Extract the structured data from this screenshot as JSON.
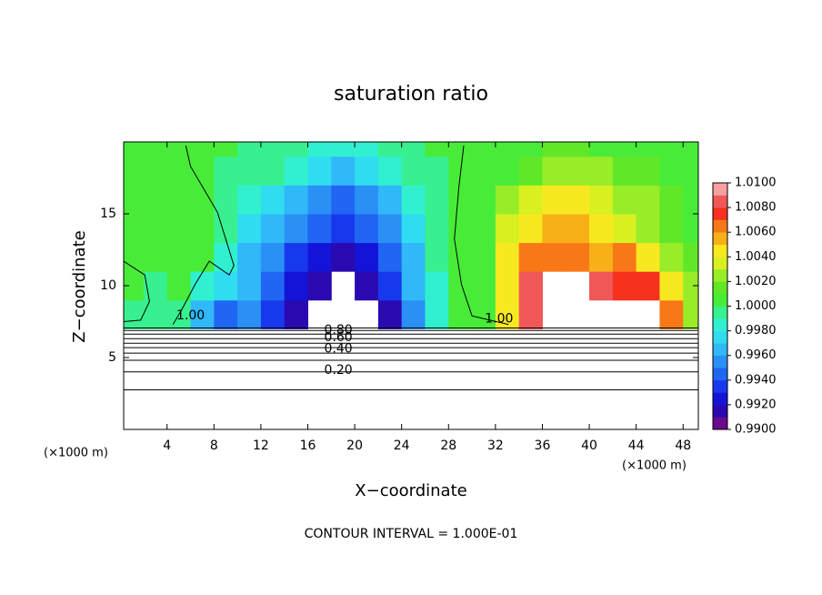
{
  "chart_data": {
    "type": "contour",
    "title": "saturation ratio",
    "x_label": "X−coordinate",
    "y_label": "Z−coordinate",
    "x_unit_left": "(×1000 m)",
    "x_unit_right": "(×1000 m)",
    "footer": "CONTOUR INTERVAL = 1.000E-01",
    "xlim": [
      0.3,
      49.3
    ],
    "ylim": [
      0,
      20
    ],
    "xticks": [
      4,
      8,
      12,
      16,
      20,
      24,
      28,
      32,
      36,
      40,
      44,
      48
    ],
    "yticks": [
      5,
      10,
      15
    ],
    "x": [
      1,
      3,
      5,
      7,
      9,
      11,
      13,
      15,
      17,
      19,
      21,
      23,
      25,
      27,
      29,
      31,
      33,
      35,
      37,
      39,
      41,
      43,
      45,
      47,
      49
    ],
    "y": [
      8,
      10,
      12,
      14,
      16,
      18,
      20
    ],
    "z": [
      [
        0.9998,
        0.9995,
        0.999,
        0.996,
        0.994,
        0.995,
        0.9935,
        0.9915,
        null,
        null,
        null,
        0.9915,
        0.995,
        0.9985,
        1.0,
        1.0004,
        1.005,
        1.009,
        null,
        null,
        null,
        null,
        null,
        1.007,
        1.003
      ],
      [
        1.0,
        0.9999,
        1.0,
        0.9985,
        0.997,
        0.996,
        0.9945,
        0.9925,
        0.991,
        null,
        0.9912,
        0.993,
        0.996,
        0.9988,
        1.0,
        1.0002,
        1.0045,
        1.0085,
        null,
        null,
        1.008,
        1.0075,
        1.0075,
        1.005,
        1.002
      ],
      [
        1.0001,
        1.0002,
        1.0001,
        1.0,
        0.9985,
        0.9965,
        0.995,
        0.9935,
        0.9925,
        0.9915,
        0.9925,
        0.9945,
        0.9968,
        0.999,
        1.0,
        1.0008,
        1.004,
        1.0065,
        1.0068,
        1.006,
        1.0055,
        1.006,
        1.005,
        1.003,
        1.0012
      ],
      [
        1.0002,
        1.0002,
        1.0001,
        1.0,
        0.999,
        0.9972,
        0.996,
        0.995,
        0.9942,
        0.9935,
        0.9942,
        0.9955,
        0.9975,
        0.9992,
        1.0,
        1.001,
        1.0035,
        1.005,
        1.0055,
        1.0052,
        1.0045,
        1.0038,
        1.0025,
        1.0015,
        1.0008
      ],
      [
        1.0003,
        1.0003,
        1.0002,
        1.0,
        0.9994,
        0.9985,
        0.9972,
        0.9962,
        0.9955,
        0.9948,
        0.9955,
        0.9968,
        0.9982,
        0.9995,
        1.0,
        1.0008,
        1.0022,
        1.0035,
        1.004,
        1.004,
        1.0035,
        1.0028,
        1.002,
        1.0012,
        1.0008
      ],
      [
        1.0002,
        1.0002,
        1.0001,
        1.0,
        0.9998,
        0.9995,
        0.999,
        0.9985,
        0.9975,
        0.9965,
        0.997,
        0.998,
        0.999,
        0.9998,
        1.0,
        1.0004,
        1.001,
        1.0018,
        1.0022,
        1.0022,
        1.002,
        1.0016,
        1.0012,
        1.0008,
        1.0006
      ],
      [
        1.0002,
        1.0002,
        1.0001,
        1.0,
        1.0,
        0.9997,
        0.9995,
        0.999,
        0.9985,
        0.998,
        0.9985,
        0.999,
        0.9995,
        1.0,
        1.0,
        1.0003,
        1.0005,
        1.001,
        1.0012,
        1.0012,
        1.001,
        1.0008,
        1.0006,
        1.0005,
        1.0004
      ]
    ],
    "colorbar": {
      "lim": [
        0.99,
        1.01
      ],
      "colors": [
        "#6a0a8c",
        "#2a0ab0",
        "#1414d8",
        "#1838ee",
        "#2066f2",
        "#2a90f5",
        "#30b8f8",
        "#30dcf0",
        "#30f0d0",
        "#38f090",
        "#48ec38",
        "#60e828",
        "#98ec28",
        "#d8f020",
        "#f8e820",
        "#f8b018",
        "#f87818",
        "#f83020",
        "#f05858",
        "#f8a0a0"
      ],
      "ticks": [
        {
          "value": 0.99,
          "label": "0.9900"
        },
        {
          "value": 0.992,
          "label": "0.9920"
        },
        {
          "value": 0.994,
          "label": "0.9940"
        },
        {
          "value": 0.996,
          "label": "0.9960"
        },
        {
          "value": 0.998,
          "label": "0.9980"
        },
        {
          "value": 1.0,
          "label": "1.0000"
        },
        {
          "value": 1.002,
          "label": "1.0020"
        },
        {
          "value": 1.004,
          "label": "1.0040"
        },
        {
          "value": 1.006,
          "label": "1.0060"
        },
        {
          "value": 1.008,
          "label": "1.0080"
        },
        {
          "value": 1.01,
          "label": "1.0100"
        }
      ]
    },
    "contour_lines": [
      {
        "x": [
          5.6,
          6,
          8.3,
          9.7,
          9.3,
          7.6,
          6.4,
          5.2,
          4.5
        ],
        "y": [
          19.75,
          18.3,
          15.1,
          11.4,
          10.75,
          11.7,
          10.1,
          8.25,
          7.3
        ]
      },
      {
        "x": [
          0.3,
          2.1,
          2.5,
          1.75,
          0.3
        ],
        "y": [
          11.7,
          10.75,
          8.9,
          7.6,
          7.5
        ]
      },
      {
        "x": [
          29.3,
          28.9,
          28.5,
          29.1,
          30,
          33.1
        ],
        "y": [
          19.75,
          17,
          13.25,
          10.1,
          7.9,
          7.3
        ]
      },
      {
        "x": [
          0.3,
          49.3
        ],
        "y": [
          7.06,
          7.06
        ]
      },
      {
        "x": [
          0.3,
          49.3
        ],
        "y": [
          6.88,
          6.88
        ]
      },
      {
        "x": [
          0.3,
          49.3
        ],
        "y": [
          6.63,
          6.63
        ]
      },
      {
        "x": [
          0.3,
          49.3
        ],
        "y": [
          6.31,
          6.31
        ]
      },
      {
        "x": [
          0.3,
          49.3
        ],
        "y": [
          6.0,
          6.0
        ]
      },
      {
        "x": [
          0.3,
          49.3
        ],
        "y": [
          5.69,
          5.69
        ]
      },
      {
        "x": [
          0.3,
          49.3
        ],
        "y": [
          5.31,
          5.31
        ]
      },
      {
        "x": [
          0.3,
          49.3
        ],
        "y": [
          4.81,
          4.81
        ]
      },
      {
        "x": [
          0.3,
          49.3
        ],
        "y": [
          4.0,
          4.0
        ]
      },
      {
        "x": [
          0.3,
          49.3
        ],
        "y": [
          2.75,
          2.75
        ]
      }
    ],
    "contour_labels": [
      {
        "text": "0.80",
        "x": 17.4,
        "y": 6.9
      },
      {
        "text": "0.60",
        "x": 17.4,
        "y": 6.4
      },
      {
        "text": "0.40",
        "x": 17.4,
        "y": 5.6
      },
      {
        "text": "0.20",
        "x": 17.4,
        "y": 4.1
      },
      {
        "text": "1.00",
        "x": 4.8,
        "y": 7.9
      },
      {
        "text": "1.00",
        "x": 31.1,
        "y": 7.7
      }
    ]
  }
}
